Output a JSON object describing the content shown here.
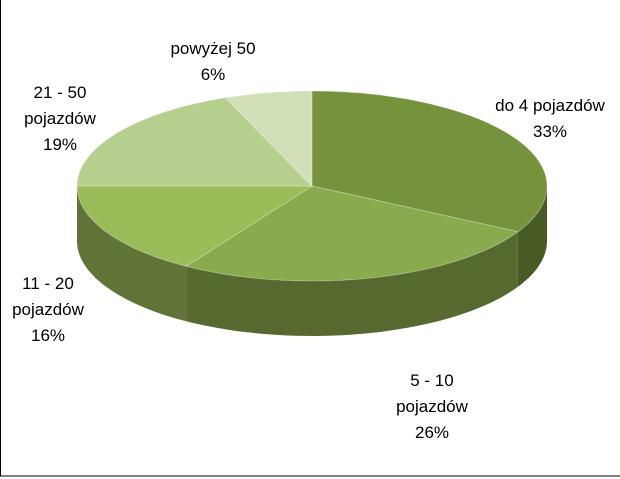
{
  "chart_data": {
    "type": "pie",
    "categories": [
      "do 4 pojazdów",
      "5 - 10 pojazdów",
      "11 - 20 pojazdów",
      "21 - 50 pojazdów",
      "powyżej 50"
    ],
    "values": [
      33,
      26,
      16,
      19,
      6
    ],
    "value_labels": [
      "33%",
      "26%",
      "16%",
      "19%",
      "6%"
    ],
    "colors": [
      "#76923c",
      "#8aab4d",
      "#9bbb59",
      "#b7cf8e",
      "#d2e0b9"
    ]
  }
}
